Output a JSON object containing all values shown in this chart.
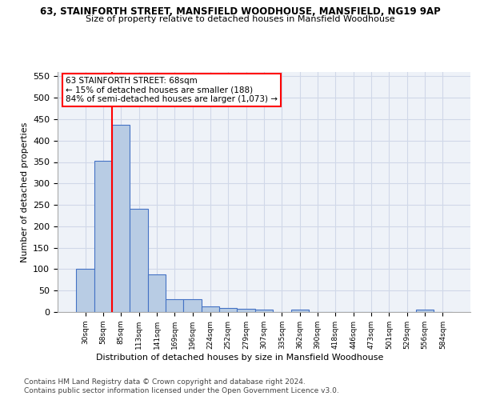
{
  "title": "63, STAINFORTH STREET, MANSFIELD WOODHOUSE, MANSFIELD, NG19 9AP",
  "subtitle": "Size of property relative to detached houses in Mansfield Woodhouse",
  "xlabel": "Distribution of detached houses by size in Mansfield Woodhouse",
  "ylabel": "Number of detached properties",
  "footnote1": "Contains HM Land Registry data © Crown copyright and database right 2024.",
  "footnote2": "Contains public sector information licensed under the Open Government Licence v3.0.",
  "bar_labels": [
    "30sqm",
    "58sqm",
    "85sqm",
    "113sqm",
    "141sqm",
    "169sqm",
    "196sqm",
    "224sqm",
    "252sqm",
    "279sqm",
    "307sqm",
    "335sqm",
    "362sqm",
    "390sqm",
    "418sqm",
    "446sqm",
    "473sqm",
    "501sqm",
    "529sqm",
    "556sqm",
    "584sqm"
  ],
  "bar_values": [
    100,
    353,
    437,
    241,
    88,
    30,
    30,
    14,
    9,
    7,
    6,
    0,
    6,
    0,
    0,
    0,
    0,
    0,
    0,
    6,
    0
  ],
  "bar_color": "#b8cce4",
  "bar_edge_color": "#4472c4",
  "grid_color": "#d0d8e8",
  "background_color": "#eef2f8",
  "red_line_x": 1.5,
  "annotation_line1": "63 STAINFORTH STREET: 68sqm",
  "annotation_line2": "← 15% of detached houses are smaller (188)",
  "annotation_line3": "84% of semi-detached houses are larger (1,073) →",
  "ylim": [
    0,
    560
  ],
  "yticks": [
    0,
    50,
    100,
    150,
    200,
    250,
    300,
    350,
    400,
    450,
    500,
    550
  ]
}
